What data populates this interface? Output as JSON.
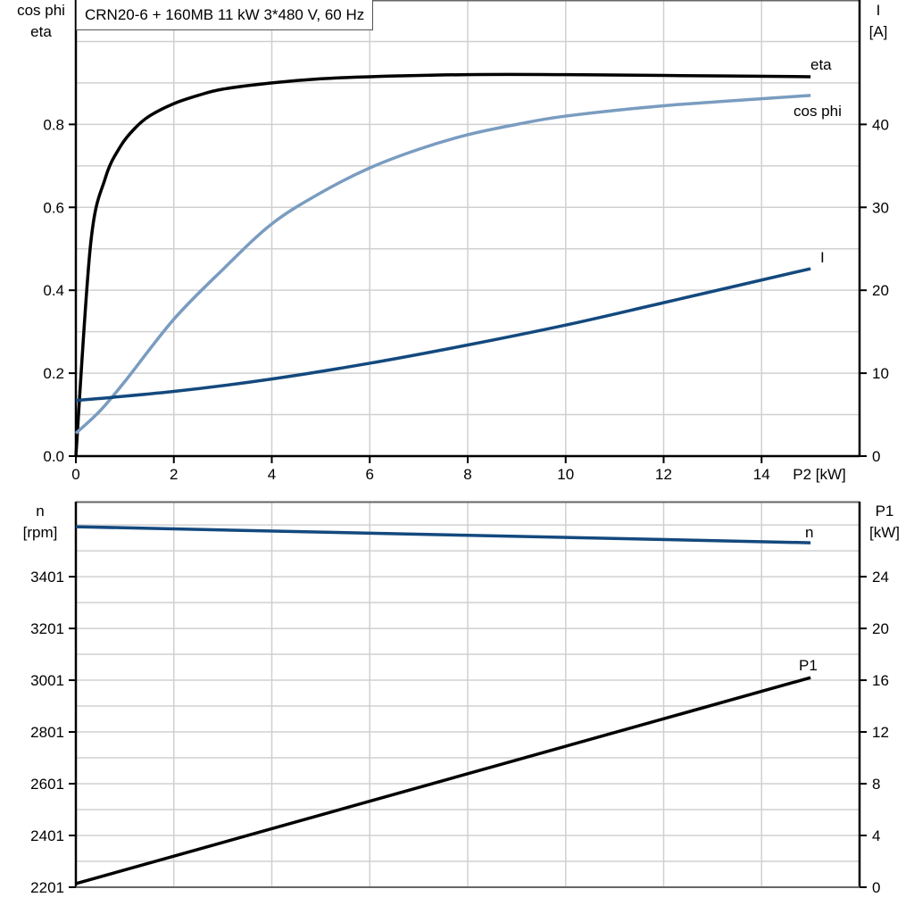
{
  "title": "CRN20-6 + 160MB   11 kW   3*480 V, 60 Hz",
  "chart_data": [
    {
      "type": "line",
      "xlabel": "P2 [kW]",
      "xlim": [
        0,
        16
      ],
      "xticks": [
        0,
        2,
        4,
        6,
        8,
        10,
        12,
        14
      ],
      "ylabel_left": [
        "cos phi",
        "eta"
      ],
      "ylim_left": [
        0,
        1.1
      ],
      "yticks_left": [
        "0.0",
        "0.2",
        "0.4",
        "0.6",
        "0.8"
      ],
      "ylabel_right": [
        "I",
        "[A]"
      ],
      "ylim_right": [
        0,
        55
      ],
      "yticks_right": [
        "0",
        "10",
        "20",
        "30",
        "40"
      ],
      "grid": true,
      "series": [
        {
          "name": "eta",
          "axis": "left",
          "color": "#000000",
          "x": [
            0,
            0.3,
            0.6,
            0.9,
            1.2,
            1.5,
            2,
            2.5,
            3,
            4,
            5,
            6,
            8,
            10,
            12,
            15
          ],
          "y": [
            0,
            0.51,
            0.67,
            0.745,
            0.79,
            0.82,
            0.85,
            0.87,
            0.885,
            0.9,
            0.91,
            0.915,
            0.92,
            0.92,
            0.918,
            0.915
          ]
        },
        {
          "name": "cos phi",
          "axis": "left",
          "color": "#7a9cc0",
          "x": [
            0,
            0.5,
            1,
            2,
            3,
            4,
            5,
            6,
            7,
            8,
            9,
            10,
            12,
            15
          ],
          "y": [
            0.055,
            0.11,
            0.18,
            0.33,
            0.45,
            0.56,
            0.635,
            0.695,
            0.74,
            0.775,
            0.8,
            0.82,
            0.845,
            0.87
          ]
        },
        {
          "name": "I",
          "axis": "right",
          "color": "#13497e",
          "x": [
            0,
            2,
            4,
            6,
            8,
            10,
            12,
            15
          ],
          "y": [
            6.7,
            7.8,
            9.3,
            11.2,
            13.4,
            15.8,
            18.5,
            22.6
          ]
        }
      ]
    },
    {
      "type": "line",
      "xlim": [
        0,
        16
      ],
      "ylabel_left": [
        "n",
        "[rpm]"
      ],
      "ylim_left": [
        2201,
        3691
      ],
      "yticks_left": [
        "2201",
        "2401",
        "2601",
        "2801",
        "3001",
        "3201",
        "3401"
      ],
      "ylabel_right": [
        "P1",
        "[kW]"
      ],
      "ylim_right": [
        0,
        29.8
      ],
      "yticks_right": [
        "0",
        "4",
        "8",
        "12",
        "16",
        "20",
        "24"
      ],
      "grid": true,
      "series": [
        {
          "name": "n",
          "axis": "left",
          "color": "#13497e",
          "x": [
            0,
            15
          ],
          "y": [
            3594,
            3532
          ]
        },
        {
          "name": "P1",
          "axis": "right",
          "color": "#000000",
          "x": [
            0,
            15
          ],
          "y": [
            0.28,
            16.2
          ]
        }
      ]
    }
  ]
}
